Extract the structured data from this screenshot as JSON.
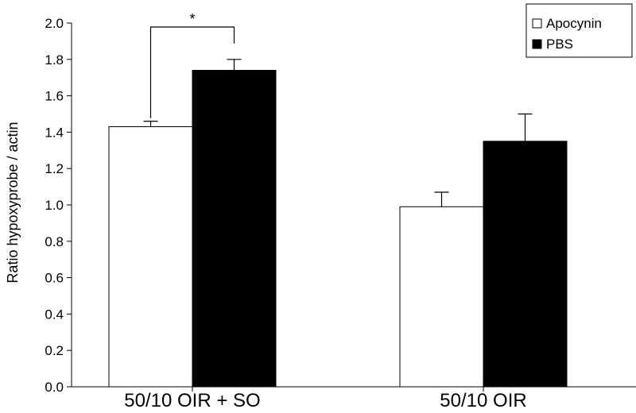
{
  "chart_data": {
    "type": "bar",
    "title": "",
    "xlabel": "",
    "ylabel": "Ratio hypoxyprobe / actin",
    "ylim": [
      0,
      2.0
    ],
    "yticks": [
      "0.0",
      "0.2",
      "0.4",
      "0.6",
      "0.8",
      "1.0",
      "1.2",
      "1.4",
      "1.6",
      "1.8",
      "2.0"
    ],
    "categories": [
      "50/10 OIR + SO",
      "50/10 OIR"
    ],
    "series": [
      {
        "name": "Apocynin",
        "values": [
          1.43,
          0.99
        ],
        "errors": [
          0.03,
          0.08
        ],
        "color": "#ffffff"
      },
      {
        "name": "PBS",
        "values": [
          1.74,
          1.35
        ],
        "errors": [
          0.06,
          0.15
        ],
        "color": "#000000"
      }
    ],
    "annotations": [
      {
        "text": "*",
        "category_index": 0,
        "type": "significance-bracket"
      }
    ],
    "legend_position": "top-right",
    "grid": false
  }
}
